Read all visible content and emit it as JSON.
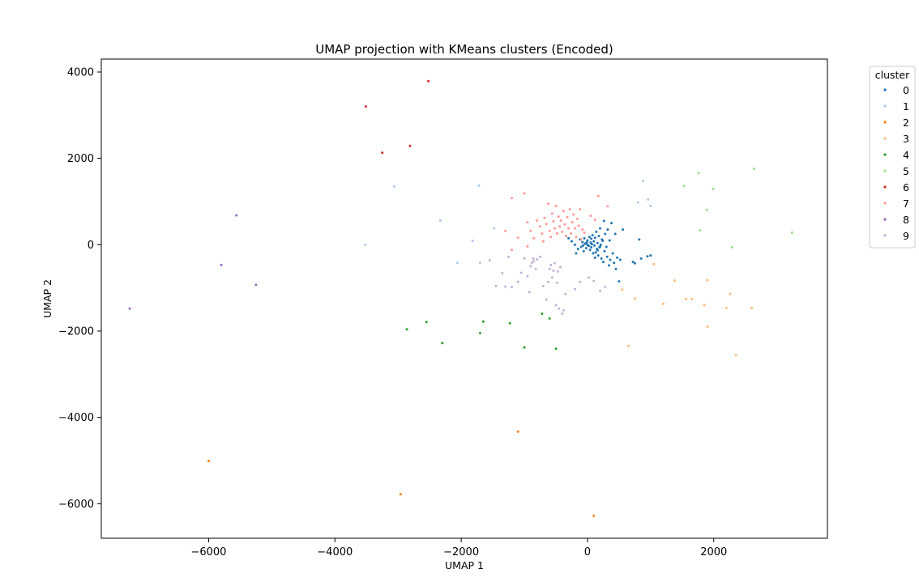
{
  "chart_data": {
    "type": "scatter",
    "title": "UMAP projection with KMeans clusters (Encoded)",
    "xlabel": "UMAP 1",
    "ylabel": "UMAP 2",
    "xlim": [
      -7700,
      3800
    ],
    "ylim": [
      -6800,
      4300
    ],
    "xticks": [
      -6000,
      -4000,
      -2000,
      0,
      2000
    ],
    "yticks": [
      -6000,
      -4000,
      -2000,
      0,
      2000,
      4000
    ],
    "grid": false,
    "legend": {
      "title": "cluster",
      "placement": "upper-right-outside"
    },
    "series": [
      {
        "name": "0",
        "color": "#1f77b4",
        "points": [
          [
            -300,
            150
          ],
          [
            -250,
            80
          ],
          [
            -200,
            0
          ],
          [
            -150,
            -100
          ],
          [
            -120,
            120
          ],
          [
            -100,
            -50
          ],
          [
            -80,
            60
          ],
          [
            -60,
            -150
          ],
          [
            -40,
            20
          ],
          [
            -20,
            -80
          ],
          [
            0,
            100
          ],
          [
            0,
            0
          ],
          [
            20,
            -30
          ],
          [
            30,
            180
          ],
          [
            40,
            -120
          ],
          [
            50,
            50
          ],
          [
            60,
            -60
          ],
          [
            80,
            220
          ],
          [
            90,
            -200
          ],
          [
            100,
            80
          ],
          [
            110,
            -20
          ],
          [
            120,
            160
          ],
          [
            130,
            -180
          ],
          [
            140,
            300
          ],
          [
            150,
            -100
          ],
          [
            160,
            40
          ],
          [
            170,
            -250
          ],
          [
            180,
            200
          ],
          [
            190,
            -60
          ],
          [
            200,
            380
          ],
          [
            210,
            0
          ],
          [
            220,
            -320
          ],
          [
            230,
            120
          ],
          [
            250,
            -400
          ],
          [
            260,
            550
          ],
          [
            270,
            -150
          ],
          [
            280,
            250
          ],
          [
            300,
            -50
          ],
          [
            310,
            -280
          ],
          [
            320,
            350
          ],
          [
            340,
            -480
          ],
          [
            350,
            100
          ],
          [
            360,
            -350
          ],
          [
            380,
            500
          ],
          [
            400,
            -200
          ],
          [
            420,
            -420
          ],
          [
            440,
            250
          ],
          [
            450,
            -560
          ],
          [
            470,
            -300
          ],
          [
            500,
            -850
          ],
          [
            520,
            -350
          ],
          [
            560,
            350
          ],
          [
            720,
            -400
          ],
          [
            750,
            -430
          ],
          [
            820,
            120
          ],
          [
            850,
            -320
          ],
          [
            950,
            -270
          ],
          [
            1000,
            -250
          ],
          [
            -30,
            30
          ],
          [
            10,
            -10
          ],
          [
            70,
            10
          ],
          [
            -10,
            60
          ],
          [
            -70,
            -20
          ],
          [
            160,
            -130
          ],
          [
            240,
            90
          ],
          [
            -180,
            -200
          ],
          [
            120,
            -300
          ],
          [
            60,
            140
          ],
          [
            200,
            -40
          ],
          [
            -50,
            150
          ]
        ]
      },
      {
        "name": "1",
        "color": "#aec7e8",
        "points": [
          [
            -3060,
            1350
          ],
          [
            -1720,
            1370
          ],
          [
            -2330,
            560
          ],
          [
            -1820,
            90
          ],
          [
            -1480,
            380
          ],
          [
            -3520,
            0
          ],
          [
            -2060,
            -420
          ],
          [
            -1700,
            -420
          ],
          [
            960,
            1050
          ],
          [
            880,
            1480
          ],
          [
            1000,
            900
          ],
          [
            800,
            980
          ]
        ]
      },
      {
        "name": "2",
        "color": "#ff7f0e",
        "points": [
          [
            -6000,
            -5010
          ],
          [
            -2960,
            -5780
          ],
          [
            -1100,
            -4330
          ],
          [
            100,
            -6280
          ]
        ]
      },
      {
        "name": "3",
        "color": "#ffbb78",
        "points": [
          [
            1050,
            -450
          ],
          [
            1380,
            -830
          ],
          [
            1560,
            -1260
          ],
          [
            1650,
            -1260
          ],
          [
            1850,
            -1400
          ],
          [
            1900,
            -820
          ],
          [
            2200,
            -1470
          ],
          [
            2350,
            -2560
          ],
          [
            2260,
            -1140
          ],
          [
            650,
            -2350
          ],
          [
            550,
            -1040
          ],
          [
            750,
            -1250
          ],
          [
            1200,
            -1370
          ],
          [
            1900,
            -1900
          ],
          [
            2600,
            -1460
          ]
        ]
      },
      {
        "name": "4",
        "color": "#2ca02c",
        "points": [
          [
            -2860,
            -1960
          ],
          [
            -2550,
            -1790
          ],
          [
            -2300,
            -2280
          ],
          [
            -1700,
            -2050
          ],
          [
            -1650,
            -1780
          ],
          [
            -1230,
            -1820
          ],
          [
            -1000,
            -2380
          ],
          [
            -720,
            -1600
          ],
          [
            -600,
            -1710
          ],
          [
            -500,
            -2410
          ]
        ]
      },
      {
        "name": "5",
        "color": "#98df8a",
        "points": [
          [
            1760,
            1660
          ],
          [
            2640,
            1760
          ],
          [
            1990,
            1290
          ],
          [
            1890,
            810
          ],
          [
            1780,
            330
          ],
          [
            2290,
            -60
          ],
          [
            3240,
            280
          ],
          [
            1530,
            1360
          ]
        ]
      },
      {
        "name": "6",
        "color": "#d62728",
        "points": [
          [
            -2520,
            3790
          ],
          [
            -3510,
            3200
          ],
          [
            -3250,
            2130
          ],
          [
            -2810,
            2290
          ]
        ]
      },
      {
        "name": "7",
        "color": "#ff9896",
        "points": [
          [
            -1200,
            1080
          ],
          [
            -1000,
            1190
          ],
          [
            -950,
            520
          ],
          [
            -900,
            320
          ],
          [
            -850,
            150
          ],
          [
            -800,
            560
          ],
          [
            -750,
            420
          ],
          [
            -720,
            260
          ],
          [
            -700,
            80
          ],
          [
            -680,
            620
          ],
          [
            -650,
            480
          ],
          [
            -620,
            950
          ],
          [
            -600,
            320
          ],
          [
            -580,
            180
          ],
          [
            -560,
            720
          ],
          [
            -540,
            540
          ],
          [
            -520,
            380
          ],
          [
            -500,
            900
          ],
          [
            -480,
            260
          ],
          [
            -460,
            650
          ],
          [
            -440,
            420
          ],
          [
            -420,
            560
          ],
          [
            -400,
            300
          ],
          [
            -380,
            780
          ],
          [
            -360,
            470
          ],
          [
            -340,
            200
          ],
          [
            -320,
            640
          ],
          [
            -300,
            380
          ],
          [
            -280,
            820
          ],
          [
            -260,
            260
          ],
          [
            -240,
            520
          ],
          [
            -220,
            700
          ],
          [
            -200,
            380
          ],
          [
            -180,
            180
          ],
          [
            -160,
            600
          ],
          [
            -140,
            440
          ],
          [
            -120,
            820
          ],
          [
            -100,
            120
          ],
          [
            -80,
            350
          ],
          [
            -50,
            280
          ],
          [
            50,
            670
          ],
          [
            120,
            580
          ],
          [
            170,
            1130
          ],
          [
            320,
            890
          ],
          [
            -1300,
            320
          ],
          [
            -1100,
            160
          ],
          [
            -950,
            -40
          ],
          [
            -1200,
            -120
          ]
        ]
      },
      {
        "name": "8",
        "color": "#9467bd",
        "points": [
          [
            -7250,
            -1480
          ],
          [
            -5800,
            -470
          ],
          [
            -5560,
            680
          ],
          [
            -5250,
            -930
          ]
        ]
      },
      {
        "name": "9",
        "color": "#c5b0d5",
        "points": [
          [
            -1450,
            -960
          ],
          [
            -1300,
            -970
          ],
          [
            -1200,
            -980
          ],
          [
            -1100,
            -860
          ],
          [
            -1050,
            -650
          ],
          [
            -1000,
            -320
          ],
          [
            -950,
            -730
          ],
          [
            -920,
            -1100
          ],
          [
            -900,
            -500
          ],
          [
            -880,
            -420
          ],
          [
            -860,
            -320
          ],
          [
            -850,
            -380
          ],
          [
            -820,
            -560
          ],
          [
            -800,
            -340
          ],
          [
            -750,
            -280
          ],
          [
            -700,
            -960
          ],
          [
            -650,
            -1270
          ],
          [
            -620,
            -860
          ],
          [
            -600,
            -560
          ],
          [
            -580,
            -470
          ],
          [
            -560,
            -760
          ],
          [
            -540,
            -600
          ],
          [
            -520,
            -430
          ],
          [
            -500,
            -1400
          ],
          [
            -480,
            -880
          ],
          [
            -470,
            -620
          ],
          [
            -450,
            -1480
          ],
          [
            -430,
            -520
          ],
          [
            -400,
            -1600
          ],
          [
            -380,
            -1520
          ],
          [
            -350,
            -1140
          ],
          [
            -200,
            -1030
          ],
          [
            -120,
            -860
          ],
          [
            20,
            -760
          ],
          [
            100,
            -840
          ],
          [
            200,
            -1070
          ],
          [
            280,
            -980
          ],
          [
            -1550,
            -360
          ],
          [
            -1350,
            -660
          ],
          [
            -1250,
            -280
          ]
        ]
      }
    ]
  }
}
